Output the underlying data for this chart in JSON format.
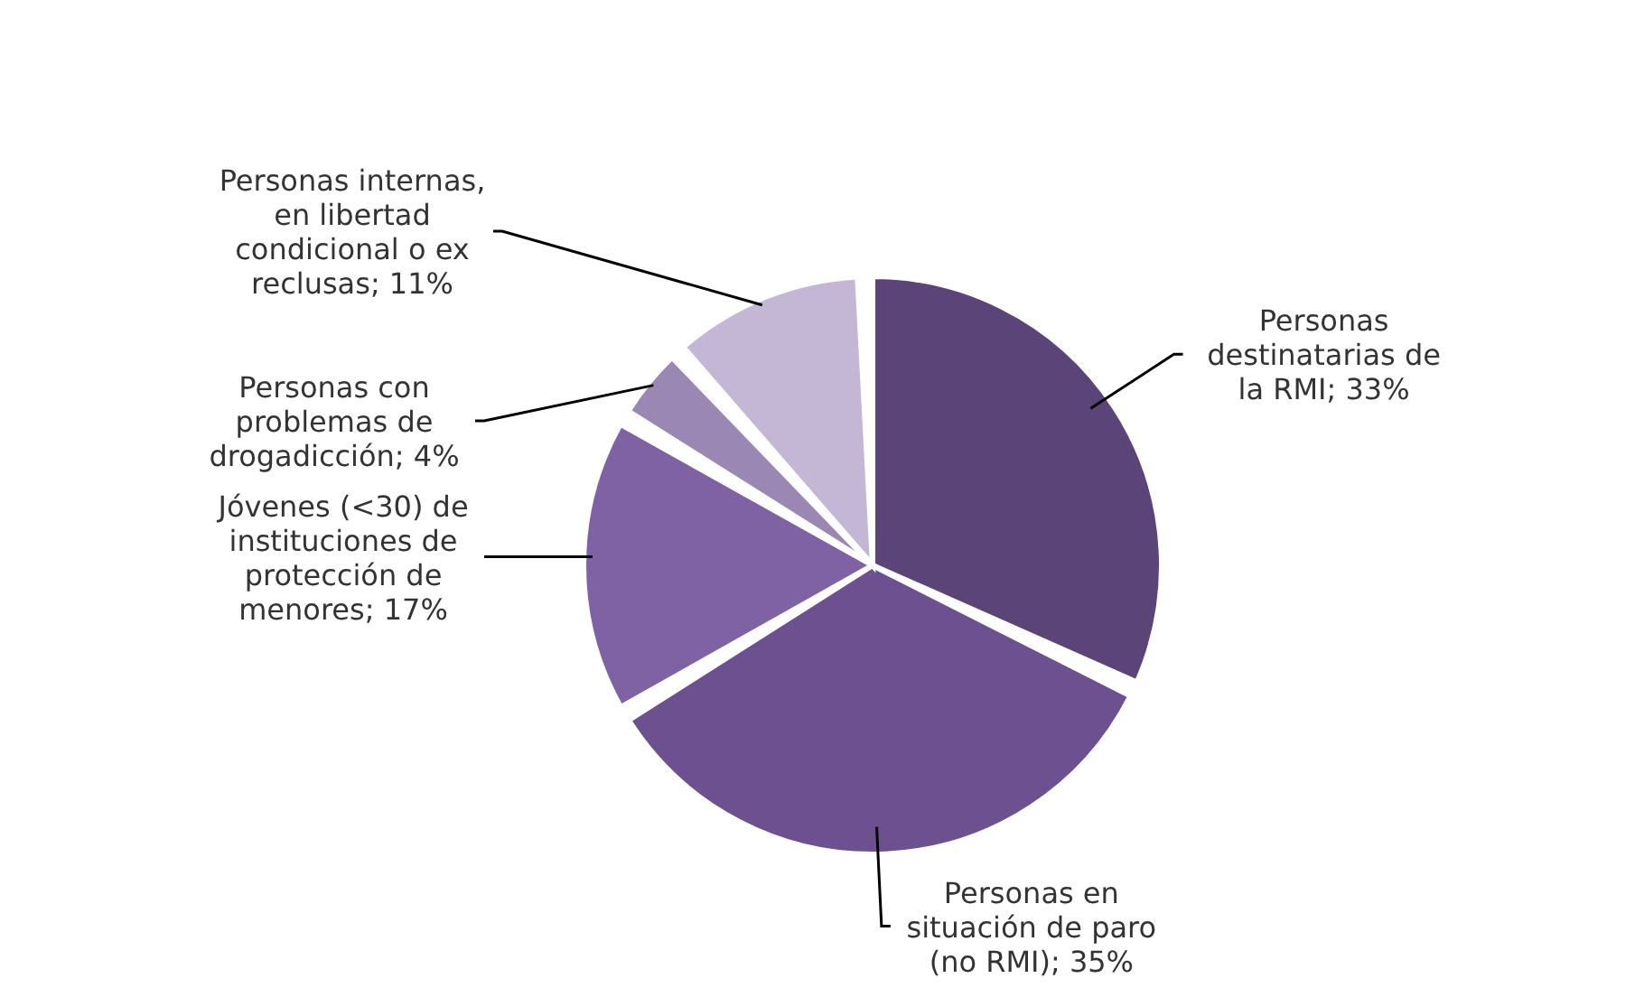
{
  "chart_data": {
    "type": "pie",
    "categories": [
      "Personas destinatarias de la RMI",
      "Personas en situación de paro (no RMI)",
      "Jóvenes (<30) de instituciones de protección de menores",
      "Personas con problemas de drogadicción",
      "Personas internas, en libertad condicional o ex reclusas"
    ],
    "values": [
      33,
      35,
      17,
      4,
      11
    ],
    "value_labels": [
      "33%",
      "35%",
      "17%",
      "4%",
      "11%"
    ],
    "colors": [
      "#5b4578",
      "#6c5090",
      "#7e62a3",
      "#9a87b4",
      "#c3b7d5"
    ]
  }
}
